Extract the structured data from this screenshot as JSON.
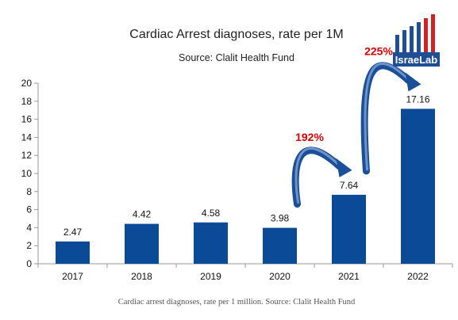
{
  "chart_data": {
    "type": "bar",
    "title": "Cardiac Arrest diagnoses, rate per 1M",
    "subtitle": "Source: Clalit Health Fund",
    "categories": [
      "2017",
      "2018",
      "2019",
      "2020",
      "2021",
      "2022"
    ],
    "values": [
      2.47,
      4.42,
      4.58,
      3.98,
      7.64,
      17.16
    ],
    "value_labels": [
      "2.47",
      "4.42",
      "4.58",
      "3.98",
      "7.64",
      "17.16"
    ],
    "ylim": [
      0,
      20
    ],
    "yticks": [
      "0",
      "2",
      "4",
      "6",
      "8",
      "10",
      "12",
      "14",
      "16",
      "18",
      "20"
    ],
    "grid": false,
    "bar_color": "#0b4a96",
    "annotations": [
      {
        "text": "192%",
        "from": "2020",
        "to": "2021",
        "color": "#e00000"
      },
      {
        "text": "225%",
        "from": "2021",
        "to": "2022",
        "color": "#e00000"
      }
    ]
  },
  "logo": {
    "text": "IsraeLab",
    "bar_colors": [
      "#1f4e96",
      "#1f4e96",
      "#1f4e96",
      "#1f4e96",
      "#d32020",
      "#d32020"
    ],
    "background": "#1f4e96"
  },
  "caption": "Cardiac arrest diagnoses, rate per 1 million. Source: Clalit Health Fund"
}
